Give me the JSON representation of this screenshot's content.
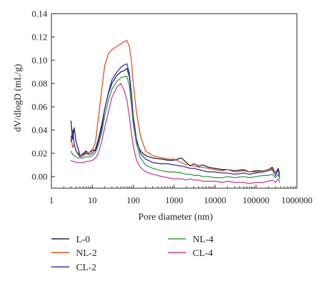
{
  "chart_data": {
    "type": "line",
    "title": "",
    "xlabel": "Pore diameter (nm)",
    "ylabel": "dV/dlogD (mL/g)",
    "xscale": "log",
    "xlim": [
      1,
      1000000
    ],
    "ylim": [
      -0.01,
      0.14
    ],
    "x_ticks": [
      1,
      10,
      100,
      1000,
      10000,
      100000,
      1000000
    ],
    "x_tick_labels": [
      "1",
      "10",
      "100",
      "1000",
      "10000",
      "100000",
      "1000000"
    ],
    "y_ticks": [
      0.0,
      0.02,
      0.04,
      0.06,
      0.08,
      0.1,
      0.12,
      0.14
    ],
    "y_tick_labels": [
      "0.00",
      "0.02",
      "0.04",
      "0.06",
      "0.08",
      "0.10",
      "0.12",
      "0.14"
    ],
    "grid": false,
    "legend_position": "bottom",
    "series": [
      {
        "name": "L-0",
        "color": "#1f1f3a",
        "x": [
          3,
          3.3,
          3.6,
          4,
          4.5,
          5,
          6,
          7,
          8,
          10,
          12,
          14,
          17,
          20,
          25,
          30,
          40,
          50,
          60,
          70,
          80,
          90,
          100,
          120,
          150,
          200,
          300,
          500,
          700,
          1000,
          1500,
          2000,
          2500,
          3000,
          4000,
          5000,
          7000,
          10000,
          15000,
          20000,
          30000,
          50000,
          70000,
          100000,
          150000,
          200000,
          250000,
          300000,
          350000,
          380000
        ],
        "y": [
          0.048,
          0.032,
          0.042,
          0.03,
          0.024,
          0.018,
          0.02,
          0.022,
          0.02,
          0.023,
          0.022,
          0.03,
          0.042,
          0.058,
          0.072,
          0.08,
          0.087,
          0.09,
          0.091,
          0.093,
          0.086,
          0.07,
          0.05,
          0.03,
          0.022,
          0.018,
          0.016,
          0.015,
          0.014,
          0.014,
          0.016,
          0.012,
          0.009,
          0.011,
          0.009,
          0.01,
          0.008,
          0.007,
          0.006,
          0.006,
          0.005,
          0.006,
          0.004,
          0.005,
          0.005,
          0.006,
          0.008,
          0.003,
          0.007,
          0.002
        ]
      },
      {
        "name": "NL-2",
        "color": "#d9541a",
        "x": [
          3,
          3.3,
          3.6,
          4,
          4.5,
          5,
          6,
          7,
          8,
          10,
          12,
          14,
          17,
          20,
          25,
          30,
          40,
          50,
          60,
          70,
          80,
          90,
          100,
          120,
          150,
          200,
          300,
          500,
          700,
          1000,
          1500,
          2000,
          2500,
          3000,
          4000,
          5000,
          7000,
          10000,
          15000,
          20000,
          30000,
          50000,
          70000,
          100000,
          150000,
          200000,
          250000,
          300000,
          350000,
          380000
        ],
        "y": [
          0.035,
          0.025,
          0.028,
          0.022,
          0.02,
          0.018,
          0.019,
          0.021,
          0.02,
          0.022,
          0.03,
          0.05,
          0.075,
          0.095,
          0.106,
          0.109,
          0.112,
          0.114,
          0.116,
          0.117,
          0.112,
          0.1,
          0.08,
          0.055,
          0.035,
          0.022,
          0.018,
          0.016,
          0.015,
          0.015,
          0.012,
          0.01,
          0.01,
          0.009,
          0.008,
          0.008,
          0.007,
          0.006,
          0.005,
          0.006,
          0.004,
          0.005,
          0.004,
          0.004,
          0.005,
          0.006,
          0.007,
          0.003,
          0.005,
          0.002
        ]
      },
      {
        "name": "CL-2",
        "color": "#2a2fb0",
        "x": [
          3,
          3.3,
          3.6,
          4,
          4.5,
          5,
          6,
          7,
          8,
          10,
          12,
          14,
          17,
          20,
          25,
          30,
          40,
          50,
          60,
          70,
          80,
          90,
          100,
          120,
          150,
          200,
          300,
          500,
          700,
          1000,
          1500,
          2000,
          2500,
          3000,
          4000,
          5000,
          7000,
          10000,
          15000,
          20000,
          30000,
          50000,
          70000,
          100000,
          150000,
          200000,
          250000,
          300000,
          350000,
          380000
        ],
        "y": [
          0.03,
          0.04,
          0.028,
          0.022,
          0.019,
          0.017,
          0.018,
          0.02,
          0.019,
          0.02,
          0.024,
          0.032,
          0.045,
          0.058,
          0.073,
          0.083,
          0.09,
          0.094,
          0.096,
          0.097,
          0.089,
          0.072,
          0.052,
          0.032,
          0.02,
          0.015,
          0.012,
          0.011,
          0.011,
          0.01,
          0.009,
          0.008,
          0.007,
          0.007,
          0.006,
          0.005,
          0.004,
          0.004,
          0.003,
          0.003,
          0.002,
          0.003,
          0.002,
          0.003,
          0.004,
          0.005,
          0.006,
          0.001,
          0.006,
          -0.001
        ]
      },
      {
        "name": "NL-4",
        "color": "#2e9a3a",
        "x": [
          3,
          3.3,
          3.6,
          4,
          4.5,
          5,
          6,
          7,
          8,
          10,
          12,
          14,
          17,
          20,
          25,
          30,
          40,
          50,
          60,
          70,
          80,
          90,
          100,
          120,
          150,
          200,
          300,
          500,
          700,
          1000,
          1500,
          2000,
          2500,
          3000,
          4000,
          5000,
          7000,
          10000,
          15000,
          20000,
          30000,
          50000,
          70000,
          100000,
          150000,
          200000,
          250000,
          300000,
          350000,
          380000
        ],
        "y": [
          0.022,
          0.019,
          0.018,
          0.017,
          0.016,
          0.016,
          0.016,
          0.017,
          0.017,
          0.018,
          0.021,
          0.027,
          0.038,
          0.052,
          0.066,
          0.075,
          0.082,
          0.085,
          0.086,
          0.086,
          0.078,
          0.062,
          0.045,
          0.028,
          0.016,
          0.01,
          0.007,
          0.005,
          0.004,
          0.004,
          0.003,
          0.002,
          0.002,
          0.001,
          0.001,
          0.0,
          0.0,
          -0.001,
          -0.001,
          0.0,
          -0.001,
          0.0,
          -0.001,
          0.0,
          0.001,
          0.001,
          0.002,
          -0.001,
          0.002,
          -0.002
        ]
      },
      {
        "name": "CL-4",
        "color": "#c8369e",
        "x": [
          3,
          3.3,
          3.6,
          4,
          4.5,
          5,
          6,
          7,
          8,
          10,
          12,
          14,
          17,
          20,
          25,
          30,
          40,
          50,
          60,
          70,
          80,
          90,
          100,
          120,
          150,
          200,
          300,
          500,
          700,
          1000,
          1500,
          2000,
          2500,
          3000,
          4000,
          5000,
          7000,
          10000,
          15000,
          20000,
          30000,
          50000,
          70000,
          100000,
          150000,
          200000,
          250000,
          300000,
          350000,
          380000
        ],
        "y": [
          0.014,
          0.013,
          0.013,
          0.012,
          0.012,
          0.012,
          0.012,
          0.013,
          0.013,
          0.014,
          0.016,
          0.02,
          0.03,
          0.042,
          0.056,
          0.068,
          0.077,
          0.08,
          0.074,
          0.066,
          0.052,
          0.038,
          0.026,
          0.014,
          0.008,
          0.004,
          0.002,
          0.0,
          -0.001,
          -0.002,
          -0.002,
          -0.003,
          -0.002,
          -0.003,
          -0.003,
          -0.004,
          -0.004,
          -0.004,
          -0.005,
          -0.004,
          -0.005,
          -0.005,
          -0.006,
          -0.005,
          -0.005,
          -0.004,
          -0.003,
          -0.005,
          -0.002,
          -0.005
        ]
      }
    ]
  }
}
